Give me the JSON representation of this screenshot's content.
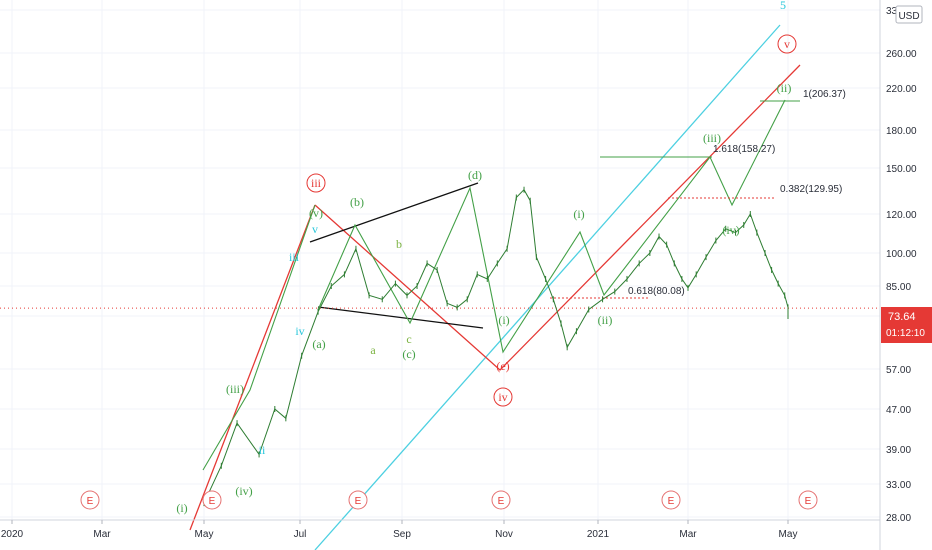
{
  "currency": "USD",
  "chart_data": {
    "type": "line",
    "title": "",
    "scale": "log",
    "ylim": [
      28,
      330
    ],
    "y_ticks": [
      "330.00",
      "260.00",
      "220.00",
      "180.00",
      "150.00",
      "120.00",
      "100.00",
      "85.00",
      "70.00",
      "57.00",
      "47.00",
      "39.00",
      "33.00",
      "28.00"
    ],
    "x_ticks": [
      "2020",
      "Mar",
      "May",
      "Jul",
      "Sep",
      "Nov",
      "2021",
      "Mar",
      "May"
    ],
    "last_price": "73.64",
    "countdown": "01:12:10",
    "grid": true,
    "series": [
      {
        "color": "#2e7d32",
        "points": [
          [
            "2020-05-01",
            30
          ],
          [
            "2020-05-12",
            36
          ],
          [
            "2020-05-22",
            44
          ],
          [
            "2020-06-05",
            38
          ],
          [
            "2020-06-15",
            47
          ],
          [
            "2020-06-22",
            45
          ],
          [
            "2020-07-02",
            60
          ],
          [
            "2020-07-12",
            72
          ],
          [
            "2020-07-20",
            85
          ],
          [
            "2020-07-28",
            90
          ],
          [
            "2020-08-04",
            102
          ],
          [
            "2020-08-12",
            80
          ],
          [
            "2020-08-20",
            78
          ],
          [
            "2020-08-28",
            86
          ],
          [
            "2020-09-04",
            80
          ],
          [
            "2020-09-10",
            85
          ],
          [
            "2020-09-16",
            95
          ],
          [
            "2020-09-22",
            92
          ],
          [
            "2020-09-28",
            76
          ],
          [
            "2020-10-04",
            74
          ],
          [
            "2020-10-10",
            78
          ],
          [
            "2020-10-16",
            90
          ],
          [
            "2020-10-22",
            88
          ],
          [
            "2020-10-28",
            95
          ],
          [
            "2020-11-03",
            102
          ],
          [
            "2020-11-09",
            130
          ],
          [
            "2020-11-14",
            135
          ],
          [
            "2020-11-18",
            128
          ],
          [
            "2020-11-22",
            98
          ],
          [
            "2020-11-28",
            88
          ],
          [
            "2020-12-03",
            78
          ],
          [
            "2020-12-08",
            68
          ],
          [
            "2020-12-12",
            62
          ],
          [
            "2020-12-18",
            66
          ],
          [
            "2020-12-26",
            73
          ],
          [
            "2021-01-04",
            78
          ],
          [
            "2021-01-12",
            82
          ],
          [
            "2021-01-20",
            88
          ],
          [
            "2021-01-28",
            95
          ],
          [
            "2021-02-04",
            100
          ],
          [
            "2021-02-10",
            108
          ],
          [
            "2021-02-15",
            104
          ],
          [
            "2021-02-20",
            95
          ],
          [
            "2021-02-25",
            88
          ],
          [
            "2021-03-01",
            84
          ],
          [
            "2021-03-06",
            90
          ],
          [
            "2021-03-12",
            98
          ],
          [
            "2021-03-18",
            106
          ],
          [
            "2021-03-24",
            112
          ],
          [
            "2021-03-30",
            110
          ],
          [
            "2021-04-04",
            114
          ],
          [
            "2021-04-08",
            120
          ],
          [
            "2021-04-12",
            110
          ],
          [
            "2021-04-17",
            100
          ],
          [
            "2021-04-21",
            92
          ],
          [
            "2021-04-25",
            86
          ],
          [
            "2021-04-29",
            80
          ],
          [
            "2021-05-03",
            74
          ],
          [
            "2021-05-06",
            70
          ],
          [
            "2021-05-08",
            73.64
          ]
        ]
      }
    ],
    "wave_labels": [
      {
        "text": "5",
        "color": "#26c6da"
      },
      {
        "text": "v",
        "color": "#e53935"
      },
      {
        "text": "iii",
        "color": "#e53935"
      },
      {
        "text": "iv",
        "color": "#e53935"
      },
      {
        "text": "(v)",
        "color": "#43a047"
      },
      {
        "text": "(iii)",
        "color": "#43a047"
      },
      {
        "text": "(iv)",
        "color": "#43a047"
      },
      {
        "text": "(i)",
        "color": "#43a047"
      },
      {
        "text": "(ii)",
        "color": "#43a047"
      },
      {
        "text": "(a)",
        "color": "#43a047"
      },
      {
        "text": "(b)",
        "color": "#43a047"
      },
      {
        "text": "(c)",
        "color": "#43a047"
      },
      {
        "text": "(d)",
        "color": "#43a047"
      },
      {
        "text": "(e)",
        "color": "#e53935"
      },
      {
        "text": "a",
        "color": "#7cb342"
      },
      {
        "text": "b",
        "color": "#7cb342"
      },
      {
        "text": "c",
        "color": "#7cb342"
      },
      {
        "text": "iii",
        "color": "#26c6da"
      },
      {
        "text": "iv",
        "color": "#26c6da"
      },
      {
        "text": "v",
        "color": "#26c6da"
      },
      {
        "text": "ii",
        "color": "#26c6da"
      },
      {
        "text": "(i)",
        "color": "#43a047"
      },
      {
        "text": "(iii)",
        "color": "#43a047"
      },
      {
        "text": "(iv)",
        "color": "#43a047"
      },
      {
        "text": "(i)",
        "color": "#43a047"
      },
      {
        "text": "(ii)",
        "color": "#43a047"
      }
    ],
    "fib_levels": [
      {
        "text": "1(206.37)",
        "color": "#43a047"
      },
      {
        "text": "1.618(158.27)",
        "color": "#43a047"
      },
      {
        "text": "0.382(129.95)",
        "color": "#e53935"
      },
      {
        "text": "0.618(80.08)",
        "color": "#e53935"
      }
    ],
    "events": [
      "E",
      "E",
      "E",
      "E",
      "E",
      "E",
      "E"
    ]
  }
}
